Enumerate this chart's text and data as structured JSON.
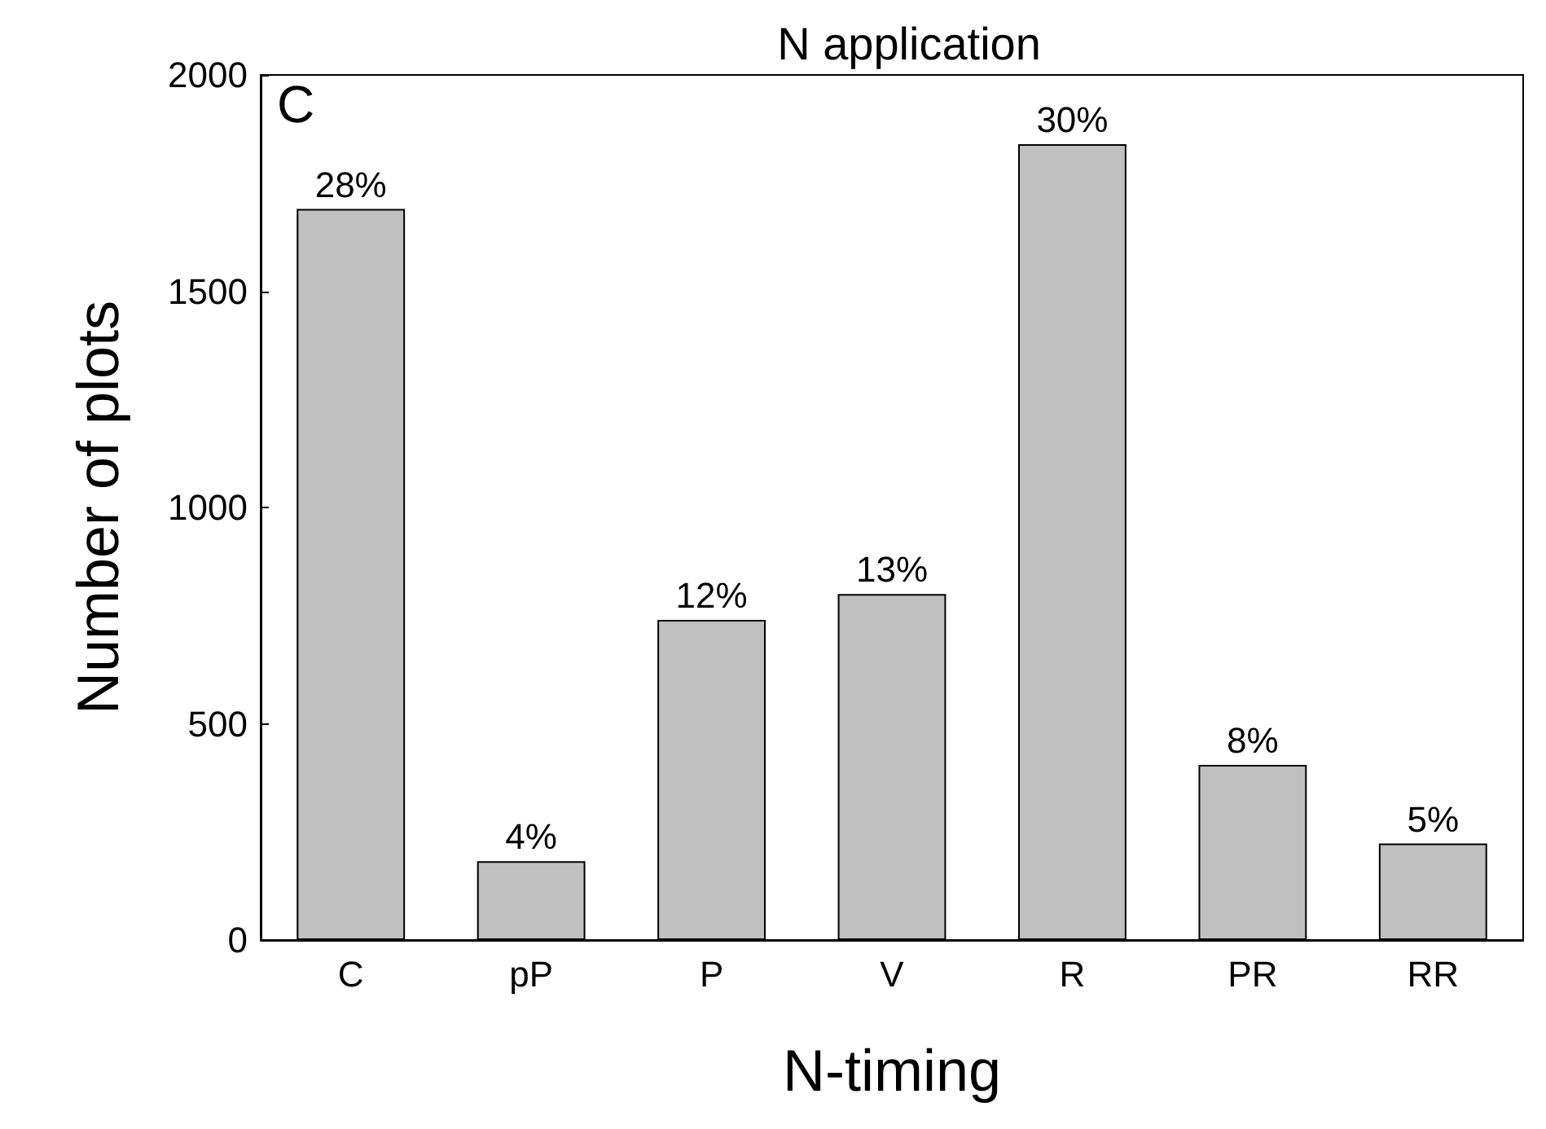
{
  "chart_data": {
    "type": "bar",
    "title": "N application",
    "xlabel": "N-timing",
    "ylabel": "Number of plots",
    "categories": [
      "C",
      "pP",
      "P",
      "V",
      "R",
      "PR",
      "RR"
    ],
    "values": [
      1690,
      182,
      740,
      800,
      1840,
      405,
      223
    ],
    "color": "#c0c0c0",
    "ylim": [
      0,
      2000
    ],
    "yticks": [
      0,
      500,
      1000,
      1500,
      2000
    ],
    "grid": false,
    "annotations": [
      "C",
      {
        "text": "28%",
        "x": "C",
        "y": 1690
      },
      {
        "text": "4%",
        "x": "pP",
        "y": 182
      },
      {
        "text": "12%",
        "x": "P",
        "y": 740
      },
      {
        "text": "13%",
        "x": "V",
        "y": 800
      },
      {
        "text": "30%",
        "x": "R",
        "y": 1840
      },
      {
        "text": "8%",
        "x": "PR",
        "y": 405
      },
      {
        "text": "5%",
        "x": "RR",
        "y": 223
      }
    ]
  }
}
